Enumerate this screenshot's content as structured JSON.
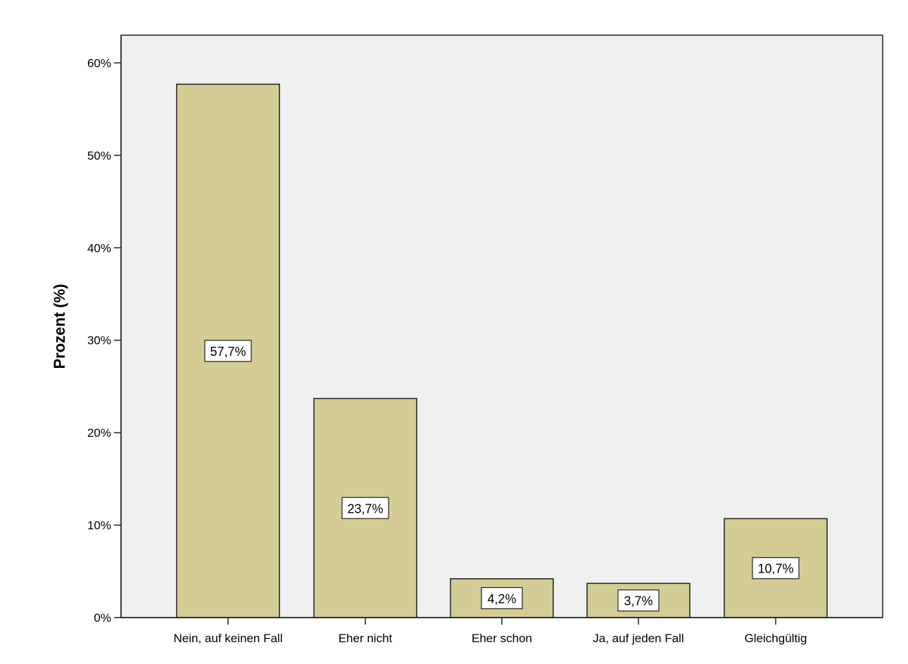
{
  "chart_data": {
    "type": "bar",
    "title": "",
    "xlabel": "",
    "ylabel": "Prozent (%)",
    "categories": [
      "Nein, auf keinen Fall",
      "Eher nicht",
      "Eher schon",
      "Ja, auf jeden Fall",
      "Gleichgültig"
    ],
    "values": [
      57.7,
      23.7,
      4.2,
      3.7,
      10.7
    ],
    "value_labels": [
      "57,7%",
      "23,7%",
      "4,2%",
      "3,7%",
      "10,7%"
    ],
    "ylim": [
      0,
      63
    ],
    "yticks": [
      0,
      10,
      20,
      30,
      40,
      50,
      60
    ],
    "ytick_labels": [
      "0%",
      "10%",
      "20%",
      "30%",
      "40%",
      "50%",
      "60%"
    ],
    "grid": false,
    "legend": "none",
    "colors": {
      "bar_fill": "#d3cd95",
      "bar_stroke": "#1f1f1f",
      "plot_background": "#f0f0f0",
      "frame": "#1f1f1f",
      "label_box_fill": "#ffffff",
      "text": "#000000"
    }
  }
}
